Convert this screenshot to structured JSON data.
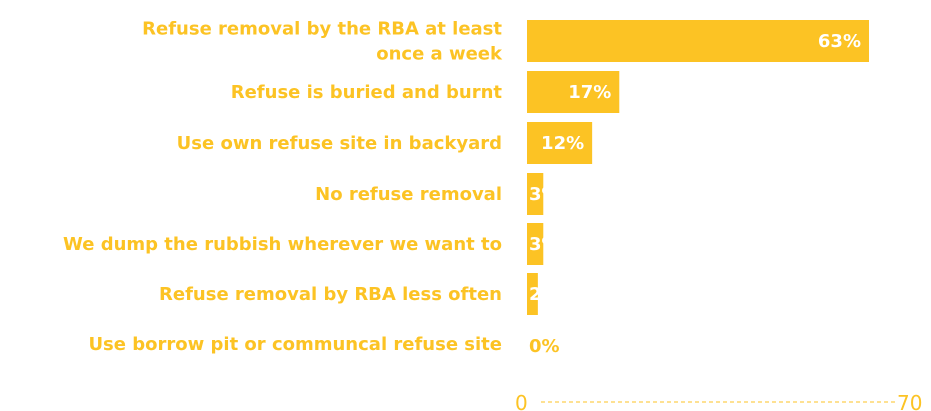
{
  "colors": {
    "bar": "#FCC324",
    "label": "#FCC324",
    "value_inside": "#ffffff",
    "value_outside": "#FCC324",
    "axis": "#FCC324"
  },
  "chart_data": {
    "type": "bar",
    "orientation": "horizontal",
    "title": "",
    "xlabel": "",
    "ylabel": "",
    "grid": false,
    "legend": "none",
    "xlim": [
      0,
      70
    ],
    "x_ticks": [
      "0",
      "70"
    ],
    "categories": [
      [
        "Refuse removal by the RBA at least",
        "once a week"
      ],
      [
        "Refuse is buried and burnt"
      ],
      [
        "Use own refuse site in backyard"
      ],
      [
        "No refuse removal"
      ],
      [
        "We dump the rubbish wherever we want to"
      ],
      [
        "Refuse removal by RBA less often"
      ],
      [
        "Use borrow pit or communcal refuse site"
      ]
    ],
    "values": [
      63,
      17,
      12,
      3,
      3,
      2,
      0
    ],
    "value_labels": [
      "63%",
      "17%",
      "12%",
      "3%",
      "3%",
      "2%",
      "0%"
    ]
  }
}
